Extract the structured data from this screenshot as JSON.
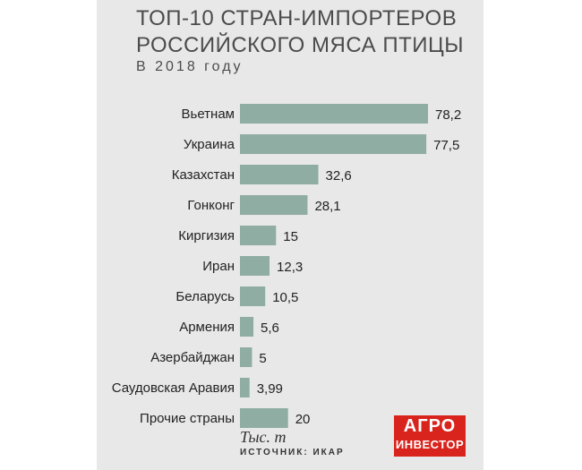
{
  "header": {
    "title_line1": "ТОП-10 СТРАН-ИМПОРТЕРОВ",
    "title_line2": "РОССИЙСКОГО МЯСА ПТИЦЫ",
    "subtitle": "В 2018 году"
  },
  "chart_data": {
    "type": "bar",
    "orientation": "horizontal",
    "categories": [
      "Вьетнам",
      "Украина",
      "Казахстан",
      "Гонконг",
      "Киргизия",
      "Иран",
      "Беларусь",
      "Армения",
      "Азербайджан",
      "Саудовская Аравия",
      "Прочие страны"
    ],
    "values": [
      78.2,
      77.5,
      32.6,
      28.1,
      15,
      12.3,
      10.5,
      5.6,
      5,
      3.99,
      20
    ],
    "value_labels": [
      "78,2",
      "77,5",
      "32,6",
      "28,1",
      "15",
      "12,3",
      "10,5",
      "5,6",
      "5",
      "3,99",
      "20"
    ],
    "unit": "Тыс. т",
    "xlim": [
      0,
      78.2
    ],
    "grid": false,
    "bar_color": "#8fada2"
  },
  "footer": {
    "unit": "Тыс. т",
    "source": "ИСТОЧНИК: ИКАР"
  },
  "logo": {
    "line1": "АГРО",
    "line2": "ИНВЕСТОР",
    "color": "#d9241d"
  }
}
